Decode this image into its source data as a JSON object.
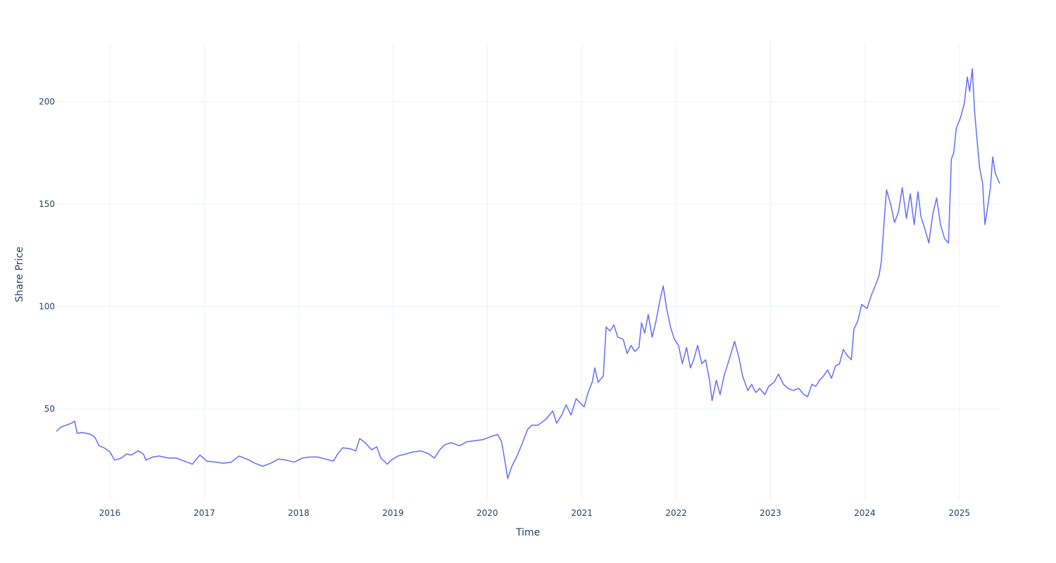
{
  "chart_data": {
    "type": "line",
    "title": "",
    "xlabel": "Time",
    "ylabel": "Share Price",
    "xlim": [
      "2015-06-08",
      "2025-06-06"
    ],
    "ylim": [
      5,
      229
    ],
    "x_ticks": [
      "2016",
      "2017",
      "2018",
      "2019",
      "2020",
      "2021",
      "2022",
      "2023",
      "2024",
      "2025"
    ],
    "y_ticks": [
      50,
      100,
      150,
      200
    ],
    "grid": true,
    "legend": "none",
    "line_color": "#636efa",
    "series": [
      {
        "points": [
          [
            "2015-06-08",
            39
          ],
          [
            "2015-06-25",
            41
          ],
          [
            "2015-07-15",
            42
          ],
          [
            "2015-08-05",
            43
          ],
          [
            "2015-08-18",
            44
          ],
          [
            "2015-08-28",
            38
          ],
          [
            "2015-09-15",
            38.5
          ],
          [
            "2015-10-05",
            38
          ],
          [
            "2015-10-20",
            37.5
          ],
          [
            "2015-11-05",
            36
          ],
          [
            "2015-11-20",
            32
          ],
          [
            "2015-12-10",
            31
          ],
          [
            "2016-01-01",
            29
          ],
          [
            "2016-01-20",
            25
          ],
          [
            "2016-02-15",
            26
          ],
          [
            "2016-03-05",
            28
          ],
          [
            "2016-03-25",
            27.5
          ],
          [
            "2016-04-20",
            29.5
          ],
          [
            "2016-05-10",
            28
          ],
          [
            "2016-05-20",
            25
          ],
          [
            "2016-06-15",
            26.5
          ],
          [
            "2016-07-10",
            27
          ],
          [
            "2016-08-15",
            26
          ],
          [
            "2016-09-15",
            26
          ],
          [
            "2016-10-15",
            24.5
          ],
          [
            "2016-11-15",
            23
          ],
          [
            "2016-12-15",
            27.5
          ],
          [
            "2017-01-10",
            24.5
          ],
          [
            "2017-02-15",
            24
          ],
          [
            "2017-03-15",
            23.5
          ],
          [
            "2017-04-15",
            24
          ],
          [
            "2017-05-15",
            27
          ],
          [
            "2017-06-15",
            25.5
          ],
          [
            "2017-07-15",
            23.5
          ],
          [
            "2017-08-15",
            22
          ],
          [
            "2017-09-15",
            23.5
          ],
          [
            "2017-10-15",
            25.5
          ],
          [
            "2017-11-15",
            25
          ],
          [
            "2017-12-15",
            24
          ],
          [
            "2018-01-15",
            26
          ],
          [
            "2018-02-15",
            26.5
          ],
          [
            "2018-03-15",
            26.5
          ],
          [
            "2018-04-15",
            25.5
          ],
          [
            "2018-05-15",
            24.5
          ],
          [
            "2018-06-01",
            28
          ],
          [
            "2018-06-20",
            31
          ],
          [
            "2018-07-20",
            30.5
          ],
          [
            "2018-08-10",
            29.5
          ],
          [
            "2018-08-25",
            35.5
          ],
          [
            "2018-09-15",
            33.5
          ],
          [
            "2018-10-10",
            30
          ],
          [
            "2018-10-30",
            31.5
          ],
          [
            "2018-11-15",
            26
          ],
          [
            "2018-12-10",
            23
          ],
          [
            "2018-12-25",
            25
          ],
          [
            "2019-01-20",
            27
          ],
          [
            "2019-02-20",
            28
          ],
          [
            "2019-03-20",
            29
          ],
          [
            "2019-04-20",
            29.5
          ],
          [
            "2019-05-20",
            28
          ],
          [
            "2019-06-10",
            26
          ],
          [
            "2019-07-01",
            30
          ],
          [
            "2019-07-20",
            32.5
          ],
          [
            "2019-08-15",
            33.5
          ],
          [
            "2019-09-15",
            32
          ],
          [
            "2019-10-15",
            34
          ],
          [
            "2019-11-15",
            34.5
          ],
          [
            "2019-12-15",
            35
          ],
          [
            "2020-01-15",
            36.5
          ],
          [
            "2020-02-10",
            37.5
          ],
          [
            "2020-02-25",
            34
          ],
          [
            "2020-03-10",
            24
          ],
          [
            "2020-03-20",
            16
          ],
          [
            "2020-04-05",
            22
          ],
          [
            "2020-04-25",
            27
          ],
          [
            "2020-05-15",
            33
          ],
          [
            "2020-06-05",
            40
          ],
          [
            "2020-06-20",
            42
          ],
          [
            "2020-07-15",
            42
          ],
          [
            "2020-08-15",
            45
          ],
          [
            "2020-09-10",
            49
          ],
          [
            "2020-09-25",
            43
          ],
          [
            "2020-10-15",
            47
          ],
          [
            "2020-11-01",
            52
          ],
          [
            "2020-11-20",
            47
          ],
          [
            "2020-12-10",
            55
          ],
          [
            "2020-12-25",
            53
          ],
          [
            "2021-01-10",
            51
          ],
          [
            "2021-01-25",
            58
          ],
          [
            "2021-02-10",
            63
          ],
          [
            "2021-02-20",
            70
          ],
          [
            "2021-03-05",
            63
          ],
          [
            "2021-03-25",
            66
          ],
          [
            "2021-04-05",
            90
          ],
          [
            "2021-04-20",
            88
          ],
          [
            "2021-05-05",
            91
          ],
          [
            "2021-05-20",
            85
          ],
          [
            "2021-06-10",
            84
          ],
          [
            "2021-06-25",
            77
          ],
          [
            "2021-07-10",
            81
          ],
          [
            "2021-07-25",
            78
          ],
          [
            "2021-08-10",
            80
          ],
          [
            "2021-08-20",
            92
          ],
          [
            "2021-09-01",
            87
          ],
          [
            "2021-09-15",
            96
          ],
          [
            "2021-09-30",
            85
          ],
          [
            "2021-10-15",
            93
          ],
          [
            "2021-10-30",
            103
          ],
          [
            "2021-11-12",
            110
          ],
          [
            "2021-11-25",
            99
          ],
          [
            "2021-12-10",
            90
          ],
          [
            "2021-12-25",
            84
          ],
          [
            "2022-01-10",
            81
          ],
          [
            "2022-01-25",
            72
          ],
          [
            "2022-02-10",
            80
          ],
          [
            "2022-02-25",
            70
          ],
          [
            "2022-03-10",
            74
          ],
          [
            "2022-03-25",
            81
          ],
          [
            "2022-04-10",
            72
          ],
          [
            "2022-04-25",
            74
          ],
          [
            "2022-05-10",
            64
          ],
          [
            "2022-05-20",
            54
          ],
          [
            "2022-06-05",
            64
          ],
          [
            "2022-06-20",
            57
          ],
          [
            "2022-07-05",
            66
          ],
          [
            "2022-07-25",
            74
          ],
          [
            "2022-08-15",
            83
          ],
          [
            "2022-09-01",
            75
          ],
          [
            "2022-09-15",
            66
          ],
          [
            "2022-10-05",
            59
          ],
          [
            "2022-10-20",
            62
          ],
          [
            "2022-11-05",
            58
          ],
          [
            "2022-11-20",
            60
          ],
          [
            "2022-12-10",
            57
          ],
          [
            "2022-12-25",
            61
          ],
          [
            "2023-01-15",
            63
          ],
          [
            "2023-02-01",
            67
          ],
          [
            "2023-02-20",
            62
          ],
          [
            "2023-03-10",
            60
          ],
          [
            "2023-03-30",
            59
          ],
          [
            "2023-04-20",
            60
          ],
          [
            "2023-05-10",
            57
          ],
          [
            "2023-05-25",
            56
          ],
          [
            "2023-06-10",
            62
          ],
          [
            "2023-06-25",
            61
          ],
          [
            "2023-07-10",
            64
          ],
          [
            "2023-07-25",
            66
          ],
          [
            "2023-08-10",
            69
          ],
          [
            "2023-08-25",
            65
          ],
          [
            "2023-09-10",
            71
          ],
          [
            "2023-09-25",
            72
          ],
          [
            "2023-10-10",
            79
          ],
          [
            "2023-10-25",
            76
          ],
          [
            "2023-11-10",
            74
          ],
          [
            "2023-11-20",
            89
          ],
          [
            "2023-12-05",
            93
          ],
          [
            "2023-12-20",
            101
          ],
          [
            "2024-01-10",
            99
          ],
          [
            "2024-01-25",
            105
          ],
          [
            "2024-02-10",
            110
          ],
          [
            "2024-02-25",
            115
          ],
          [
            "2024-03-05",
            122
          ],
          [
            "2024-03-15",
            140
          ],
          [
            "2024-03-25",
            157
          ],
          [
            "2024-04-10",
            150
          ],
          [
            "2024-04-25",
            141
          ],
          [
            "2024-05-10",
            146
          ],
          [
            "2024-05-25",
            158
          ],
          [
            "2024-06-10",
            143
          ],
          [
            "2024-06-25",
            155
          ],
          [
            "2024-07-10",
            140
          ],
          [
            "2024-07-25",
            156
          ],
          [
            "2024-08-05",
            144
          ],
          [
            "2024-08-20",
            138
          ],
          [
            "2024-09-05",
            131
          ],
          [
            "2024-09-20",
            145
          ],
          [
            "2024-10-05",
            153
          ],
          [
            "2024-10-20",
            140
          ],
          [
            "2024-11-05",
            133
          ],
          [
            "2024-11-20",
            131
          ],
          [
            "2024-12-01",
            172
          ],
          [
            "2024-12-10",
            175
          ],
          [
            "2024-12-20",
            187
          ],
          [
            "2025-01-05",
            192
          ],
          [
            "2025-01-20",
            199
          ],
          [
            "2025-02-01",
            212
          ],
          [
            "2025-02-10",
            205
          ],
          [
            "2025-02-20",
            216
          ],
          [
            "2025-03-01",
            195
          ],
          [
            "2025-03-10",
            182
          ],
          [
            "2025-03-20",
            168
          ],
          [
            "2025-04-01",
            160
          ],
          [
            "2025-04-10",
            140
          ],
          [
            "2025-04-20",
            148
          ],
          [
            "2025-05-01",
            158
          ],
          [
            "2025-05-10",
            173
          ],
          [
            "2025-05-20",
            165
          ],
          [
            "2025-06-06",
            160
          ]
        ]
      }
    ]
  }
}
